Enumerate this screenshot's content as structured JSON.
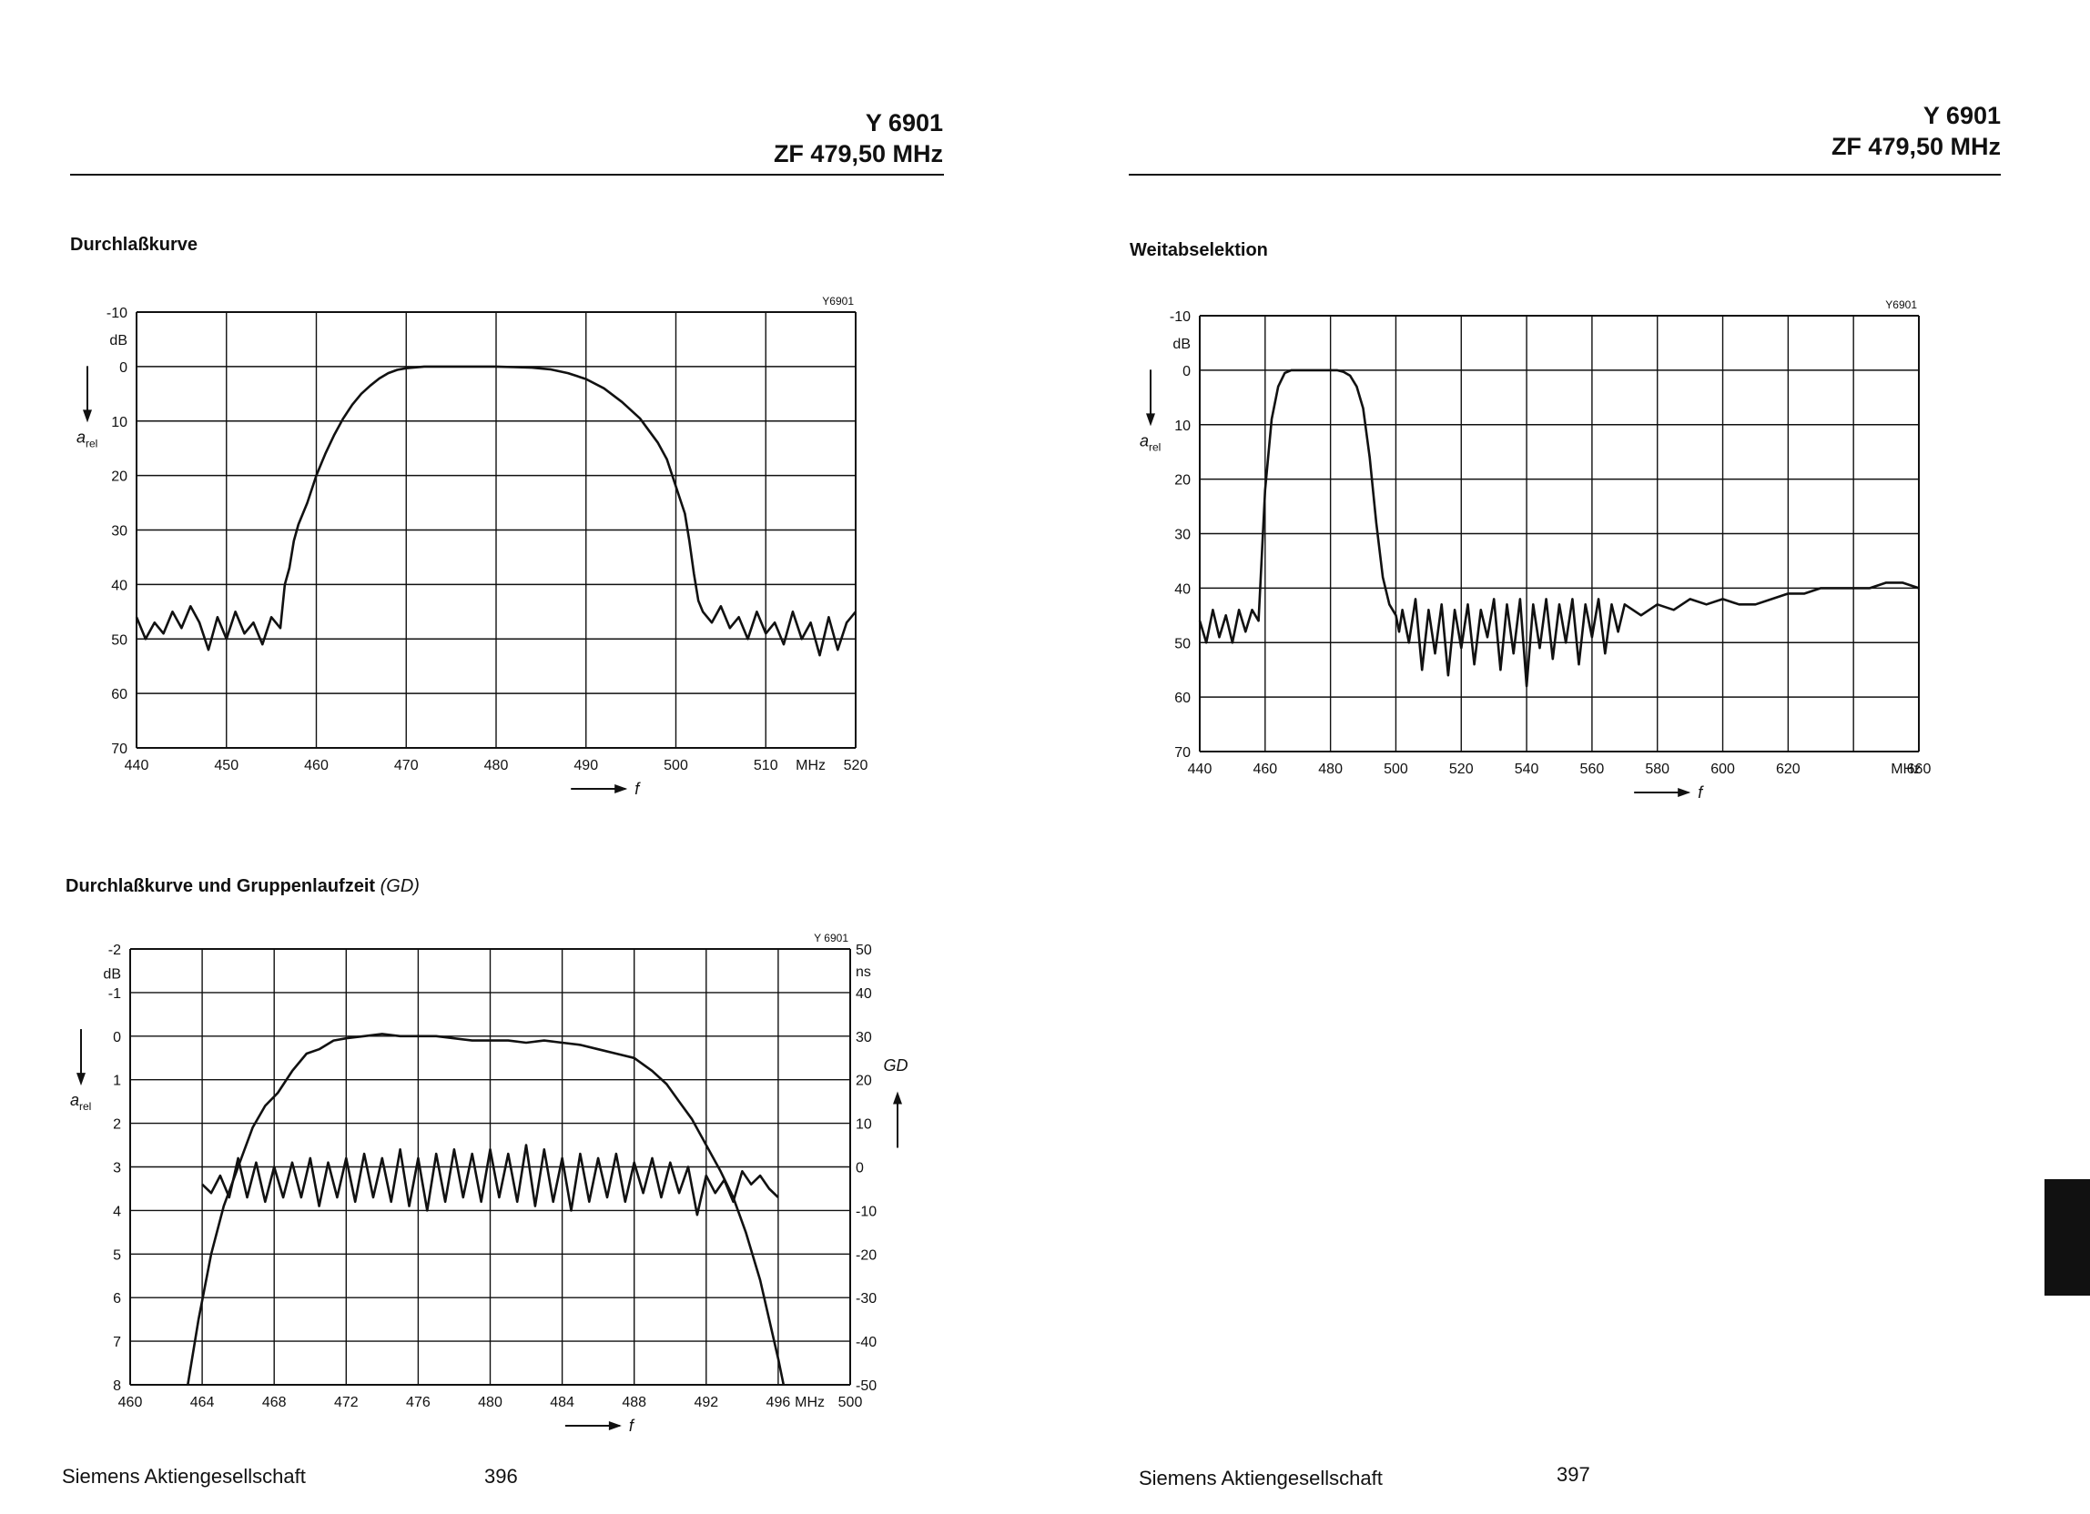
{
  "pages": [
    {
      "header": {
        "line1": "Y 6901",
        "line2": "ZF  479,50 MHz"
      },
      "footer": {
        "company": "Siemens Aktiengesellschaft",
        "page_number": "396"
      }
    },
    {
      "header": {
        "line1": "Y 6901",
        "line2": "ZF  479,50 MHz"
      },
      "footer": {
        "company": "Siemens Aktiengesellschaft",
        "page_number": "397"
      }
    }
  ],
  "chart_data": [
    {
      "id": "durchlass",
      "type": "line",
      "section_title": "Durchlaßkurve",
      "tag": "Y6901",
      "ylabel": "a",
      "ylabel_sub": "rel",
      "yunit": "dB",
      "xunit": "MHz",
      "xlabel": "f",
      "xlim": [
        440,
        520
      ],
      "ylim": [
        -10,
        70
      ],
      "y_inverted": true,
      "grid": true,
      "x_ticks": [
        "440",
        "450",
        "460",
        "470",
        "480",
        "490",
        "500",
        "510",
        "520"
      ],
      "y_ticks": [
        "-10",
        "0",
        "10",
        "20",
        "30",
        "40",
        "50",
        "60",
        "70"
      ],
      "series": [
        {
          "x": [
            440,
            441,
            442,
            443,
            444,
            445,
            446,
            447,
            448,
            449,
            450,
            451,
            452,
            453,
            454,
            455,
            456,
            456.5,
            457,
            457.5,
            458,
            459,
            460,
            461,
            462,
            463,
            464,
            465,
            466,
            467,
            468,
            469,
            470,
            472,
            474,
            476,
            478,
            480,
            482,
            484,
            486,
            488,
            490,
            492,
            494,
            496,
            498,
            499,
            500,
            501,
            501.5,
            502,
            502.5,
            503,
            504,
            505,
            506,
            507,
            508,
            509,
            510,
            511,
            512,
            513,
            514,
            515,
            516,
            517,
            518,
            519,
            520
          ],
          "y": [
            46,
            50,
            47,
            49,
            45,
            48,
            44,
            47,
            52,
            46,
            50,
            45,
            49,
            47,
            51,
            46,
            48,
            40,
            37,
            32,
            29,
            25,
            20,
            16,
            12.5,
            9.5,
            7,
            5,
            3.5,
            2.2,
            1.2,
            0.6,
            0.3,
            0,
            0,
            0,
            0,
            0,
            0.1,
            0.2,
            0.5,
            1.2,
            2.3,
            4,
            6.5,
            9.5,
            14,
            17,
            22,
            27,
            32,
            38,
            43,
            45,
            47,
            44,
            48,
            46,
            50,
            45,
            49,
            47,
            51,
            45,
            50,
            47,
            53,
            46,
            52,
            47,
            45
          ]
        }
      ]
    },
    {
      "id": "weitab",
      "type": "line",
      "section_title": "Weitabselektion",
      "tag": "Y6901",
      "ylabel": "a",
      "ylabel_sub": "rel",
      "yunit": "dB",
      "xunit": "MHz",
      "xlabel": "f",
      "xlim": [
        440,
        660
      ],
      "ylim": [
        -10,
        70
      ],
      "y_inverted": true,
      "grid": true,
      "x_ticks": [
        "440",
        "460",
        "480",
        "500",
        "520",
        "540",
        "560",
        "580",
        "600",
        "620",
        "",
        "660"
      ],
      "y_ticks": [
        "-10",
        "0",
        "10",
        "20",
        "30",
        "40",
        "50",
        "60",
        "70"
      ],
      "series": [
        {
          "x": [
            440,
            442,
            444,
            446,
            448,
            450,
            452,
            454,
            456,
            458,
            460,
            462,
            464,
            466,
            468,
            470,
            472,
            474,
            476,
            478,
            480,
            482,
            484,
            486,
            488,
            490,
            492,
            494,
            496,
            498,
            500,
            501,
            502,
            504,
            506,
            508,
            510,
            512,
            514,
            516,
            518,
            520,
            522,
            524,
            526,
            528,
            530,
            532,
            534,
            536,
            538,
            540,
            542,
            544,
            546,
            548,
            550,
            552,
            554,
            556,
            558,
            560,
            562,
            564,
            566,
            568,
            570,
            575,
            580,
            585,
            590,
            595,
            600,
            605,
            610,
            615,
            620,
            625,
            630,
            635,
            640,
            645,
            650,
            655,
            660
          ],
          "y": [
            46,
            50,
            44,
            49,
            45,
            50,
            44,
            48,
            44,
            46,
            22,
            9,
            3,
            0.5,
            0,
            0,
            0,
            0,
            0,
            0,
            0,
            0,
            0.3,
            1,
            3,
            7,
            16,
            28,
            38,
            43,
            45,
            48,
            44,
            50,
            42,
            55,
            44,
            52,
            43,
            56,
            44,
            51,
            43,
            54,
            44,
            49,
            42,
            55,
            43,
            52,
            42,
            58,
            43,
            51,
            42,
            53,
            43,
            50,
            42,
            54,
            43,
            49,
            42,
            52,
            43,
            48,
            43,
            45,
            43,
            44,
            42,
            43,
            42,
            43,
            43,
            42,
            41,
            41,
            40,
            40,
            40,
            40,
            39,
            39,
            40
          ]
        }
      ]
    },
    {
      "id": "gd",
      "type": "line",
      "section_title": "Durchlaßkurve und Gruppenlaufzeit",
      "section_title_italic": "(GD)",
      "tag": "Y 6901",
      "ylabel": "a",
      "ylabel_sub": "rel",
      "yunit": "dB",
      "y2label": "GD",
      "y2unit": "ns",
      "xunit": "MHz",
      "xlabel": "f",
      "xlim": [
        460,
        500
      ],
      "ylim": [
        -2,
        8
      ],
      "y_inverted": true,
      "y2lim": [
        -50,
        50
      ],
      "grid": true,
      "x_ticks": [
        "460",
        "464",
        "468",
        "472",
        "476",
        "480",
        "484",
        "488",
        "492",
        "496",
        "500"
      ],
      "y_ticks": [
        "-2",
        "-1",
        "0",
        "1",
        "2",
        "3",
        "4",
        "5",
        "6",
        "7",
        "8"
      ],
      "y2_ticks": [
        "50",
        "40",
        "30",
        "20",
        "10",
        "0",
        "-10",
        "-20",
        "-30",
        "-40",
        "-50"
      ],
      "series": [
        {
          "name": "a_rel",
          "x": [
            463.2,
            463.8,
            464.5,
            465.2,
            466,
            466.8,
            467.5,
            468.2,
            469,
            469.8,
            470.5,
            471.3,
            472,
            473,
            474,
            475,
            476,
            477,
            478,
            479,
            480,
            481,
            482,
            483,
            484,
            485,
            486,
            487,
            488,
            489,
            489.8,
            490.5,
            491.2,
            492,
            492.8,
            493.5,
            494.2,
            495,
            495.5,
            496,
            496.3
          ],
          "y": [
            8,
            6.5,
            5,
            3.9,
            3,
            2.1,
            1.6,
            1.3,
            0.8,
            0.4,
            0.3,
            0.1,
            0.05,
            0,
            -0.05,
            0,
            0,
            0,
            0.05,
            0.1,
            0.1,
            0.1,
            0.15,
            0.1,
            0.15,
            0.2,
            0.3,
            0.4,
            0.5,
            0.8,
            1.1,
            1.5,
            1.9,
            2.5,
            3.1,
            3.7,
            4.5,
            5.6,
            6.5,
            7.4,
            8
          ]
        },
        {
          "name": "GD",
          "x": [
            464,
            464.5,
            465,
            465.5,
            466,
            466.5,
            467,
            467.5,
            468,
            468.5,
            469,
            469.5,
            470,
            470.5,
            471,
            471.5,
            472,
            472.5,
            473,
            473.5,
            474,
            474.5,
            475,
            475.5,
            476,
            476.5,
            477,
            477.5,
            478,
            478.5,
            479,
            479.5,
            480,
            480.5,
            481,
            481.5,
            482,
            482.5,
            483,
            483.5,
            484,
            484.5,
            485,
            485.5,
            486,
            486.5,
            487,
            487.5,
            488,
            488.5,
            489,
            489.5,
            490,
            490.5,
            491,
            491.5,
            492,
            492.5,
            493,
            493.5,
            494,
            494.5,
            495,
            495.5,
            496
          ],
          "y": [
            -4,
            -6,
            -2,
            -7,
            2,
            -7,
            1,
            -8,
            0,
            -7,
            1,
            -7,
            2,
            -9,
            1,
            -7,
            2,
            -8,
            3,
            -7,
            2,
            -8,
            4,
            -9,
            2,
            -10,
            3,
            -8,
            4,
            -7,
            3,
            -8,
            4,
            -7,
            3,
            -8,
            5,
            -9,
            4,
            -8,
            2,
            -10,
            3,
            -8,
            2,
            -7,
            3,
            -8,
            1,
            -6,
            2,
            -7,
            1,
            -6,
            0,
            -11,
            -2,
            -6,
            -3,
            -8,
            -1,
            -4,
            -2,
            -5,
            -7
          ]
        }
      ]
    }
  ]
}
